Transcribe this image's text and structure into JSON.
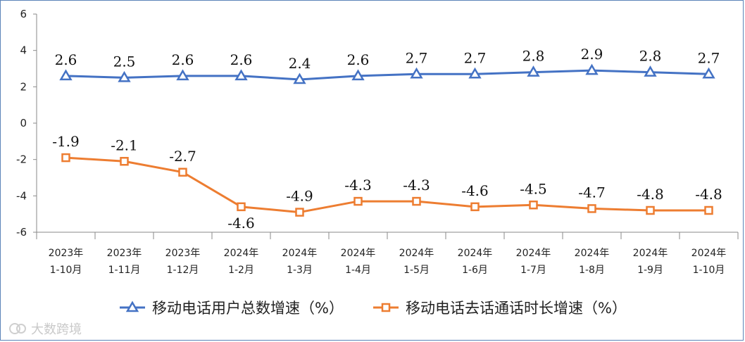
{
  "chart_data": {
    "type": "line",
    "title": "",
    "xlabel": "",
    "ylabel": "",
    "ylim": [
      -6,
      6
    ],
    "yticks": [
      6,
      4,
      2,
      0,
      -2,
      -4,
      -6
    ],
    "categories": [
      [
        "2023年",
        "1-10月"
      ],
      [
        "2023年",
        "1-11月"
      ],
      [
        "2023年",
        "1-12月"
      ],
      [
        "2024年",
        "1-2月"
      ],
      [
        "2024年",
        "1-3月"
      ],
      [
        "2024年",
        "1-4月"
      ],
      [
        "2024年",
        "1-5月"
      ],
      [
        "2024年",
        "1-6月"
      ],
      [
        "2024年",
        "1-7月"
      ],
      [
        "2024年",
        "1-8月"
      ],
      [
        "2024年",
        "1-9月"
      ],
      [
        "2024年",
        "1-10月"
      ]
    ],
    "series": [
      {
        "name": "移动电话用户总数增速（%）",
        "color": "#4472c4",
        "marker": "triangle",
        "values": [
          2.6,
          2.5,
          2.6,
          2.6,
          2.4,
          2.6,
          2.7,
          2.7,
          2.8,
          2.9,
          2.8,
          2.7
        ],
        "labels": [
          "2.6",
          "2.5",
          "2.6",
          "2.6",
          "2.4",
          "2.6",
          "2.7",
          "2.7",
          "2.8",
          "2.9",
          "2.8",
          "2.7"
        ]
      },
      {
        "name": "移动电话去话通话时长增速（%）",
        "color": "#ed7d31",
        "marker": "square",
        "values": [
          -1.9,
          -2.1,
          -2.7,
          -4.6,
          -4.9,
          -4.3,
          -4.3,
          -4.6,
          -4.5,
          -4.7,
          -4.8,
          -4.8
        ],
        "labels": [
          "-1.9",
          "-2.1",
          "-2.7",
          "-4.6",
          "-4.9",
          "-4.3",
          "-4.3",
          "-4.6",
          "-4.5",
          "-4.7",
          "-4.8",
          "-4.8"
        ]
      }
    ],
    "legend_position": "bottom"
  },
  "watermark": {
    "text": "大数跨境",
    "icon": "brand-logo-icon"
  }
}
